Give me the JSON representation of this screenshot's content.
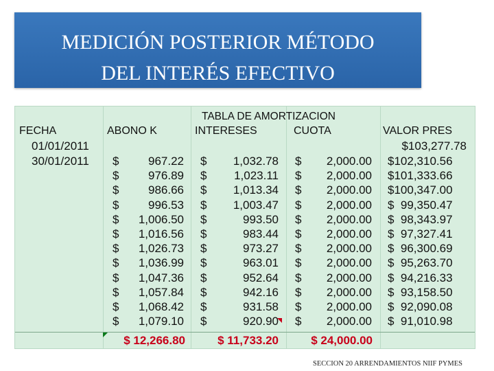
{
  "title": {
    "line1": "MEDICIÓN POSTERIOR MÉTODO",
    "line2": "DEL INTERÉS EFECTIVO"
  },
  "table": {
    "title": "TABLA DE AMORTIZACION",
    "headers": [
      "FECHA",
      "ABONO K",
      "INTERESES",
      "CUOTA",
      "VALOR PRES"
    ],
    "currency": "$",
    "dates": [
      "01/01/2011",
      "30/01/2011"
    ],
    "initial_value": "$103,277.78",
    "rows": [
      {
        "abono": "967.22",
        "interes": "1,032.78",
        "cuota": "2,000.00",
        "valor": "$102,310.56"
      },
      {
        "abono": "976.89",
        "interes": "1,023.11",
        "cuota": "2,000.00",
        "valor": "$101,333.66"
      },
      {
        "abono": "986.66",
        "interes": "1,013.34",
        "cuota": "2,000.00",
        "valor": "$100,347.00"
      },
      {
        "abono": "996.53",
        "interes": "1,003.47",
        "cuota": "2,000.00",
        "valor": "$  99,350.47"
      },
      {
        "abono": "1,006.50",
        "interes": "993.50",
        "cuota": "2,000.00",
        "valor": "$  98,343.97"
      },
      {
        "abono": "1,016.56",
        "interes": "983.44",
        "cuota": "2,000.00",
        "valor": "$  97,327.41"
      },
      {
        "abono": "1,026.73",
        "interes": "973.27",
        "cuota": "2,000.00",
        "valor": "$  96,300.69"
      },
      {
        "abono": "1,036.99",
        "interes": "963.01",
        "cuota": "2,000.00",
        "valor": "$  95,263.70"
      },
      {
        "abono": "1,047.36",
        "interes": "952.64",
        "cuota": "2,000.00",
        "valor": "$  94,216.33"
      },
      {
        "abono": "1,057.84",
        "interes": "942.16",
        "cuota": "2,000.00",
        "valor": "$  93,158.50"
      },
      {
        "abono": "1,068.42",
        "interes": "931.58",
        "cuota": "2,000.00",
        "valor": "$  92,090.08"
      },
      {
        "abono": "1,079.10",
        "interes": "920.90",
        "cuota": "2,000.00",
        "valor": "$  91,010.98"
      }
    ],
    "totals": {
      "abono": "$ 12,266.80",
      "interes": "$  11,733.20",
      "cuota": "$  24,000.00"
    },
    "colors": {
      "text": "#111111",
      "totals": "#c8001a",
      "background": "#d8eedf",
      "grid": "#b9d9c4",
      "title_bar": "#2a64a8"
    }
  },
  "footer": "SECCION 20 ARRENDAMIENTOS NIIF PYMES"
}
